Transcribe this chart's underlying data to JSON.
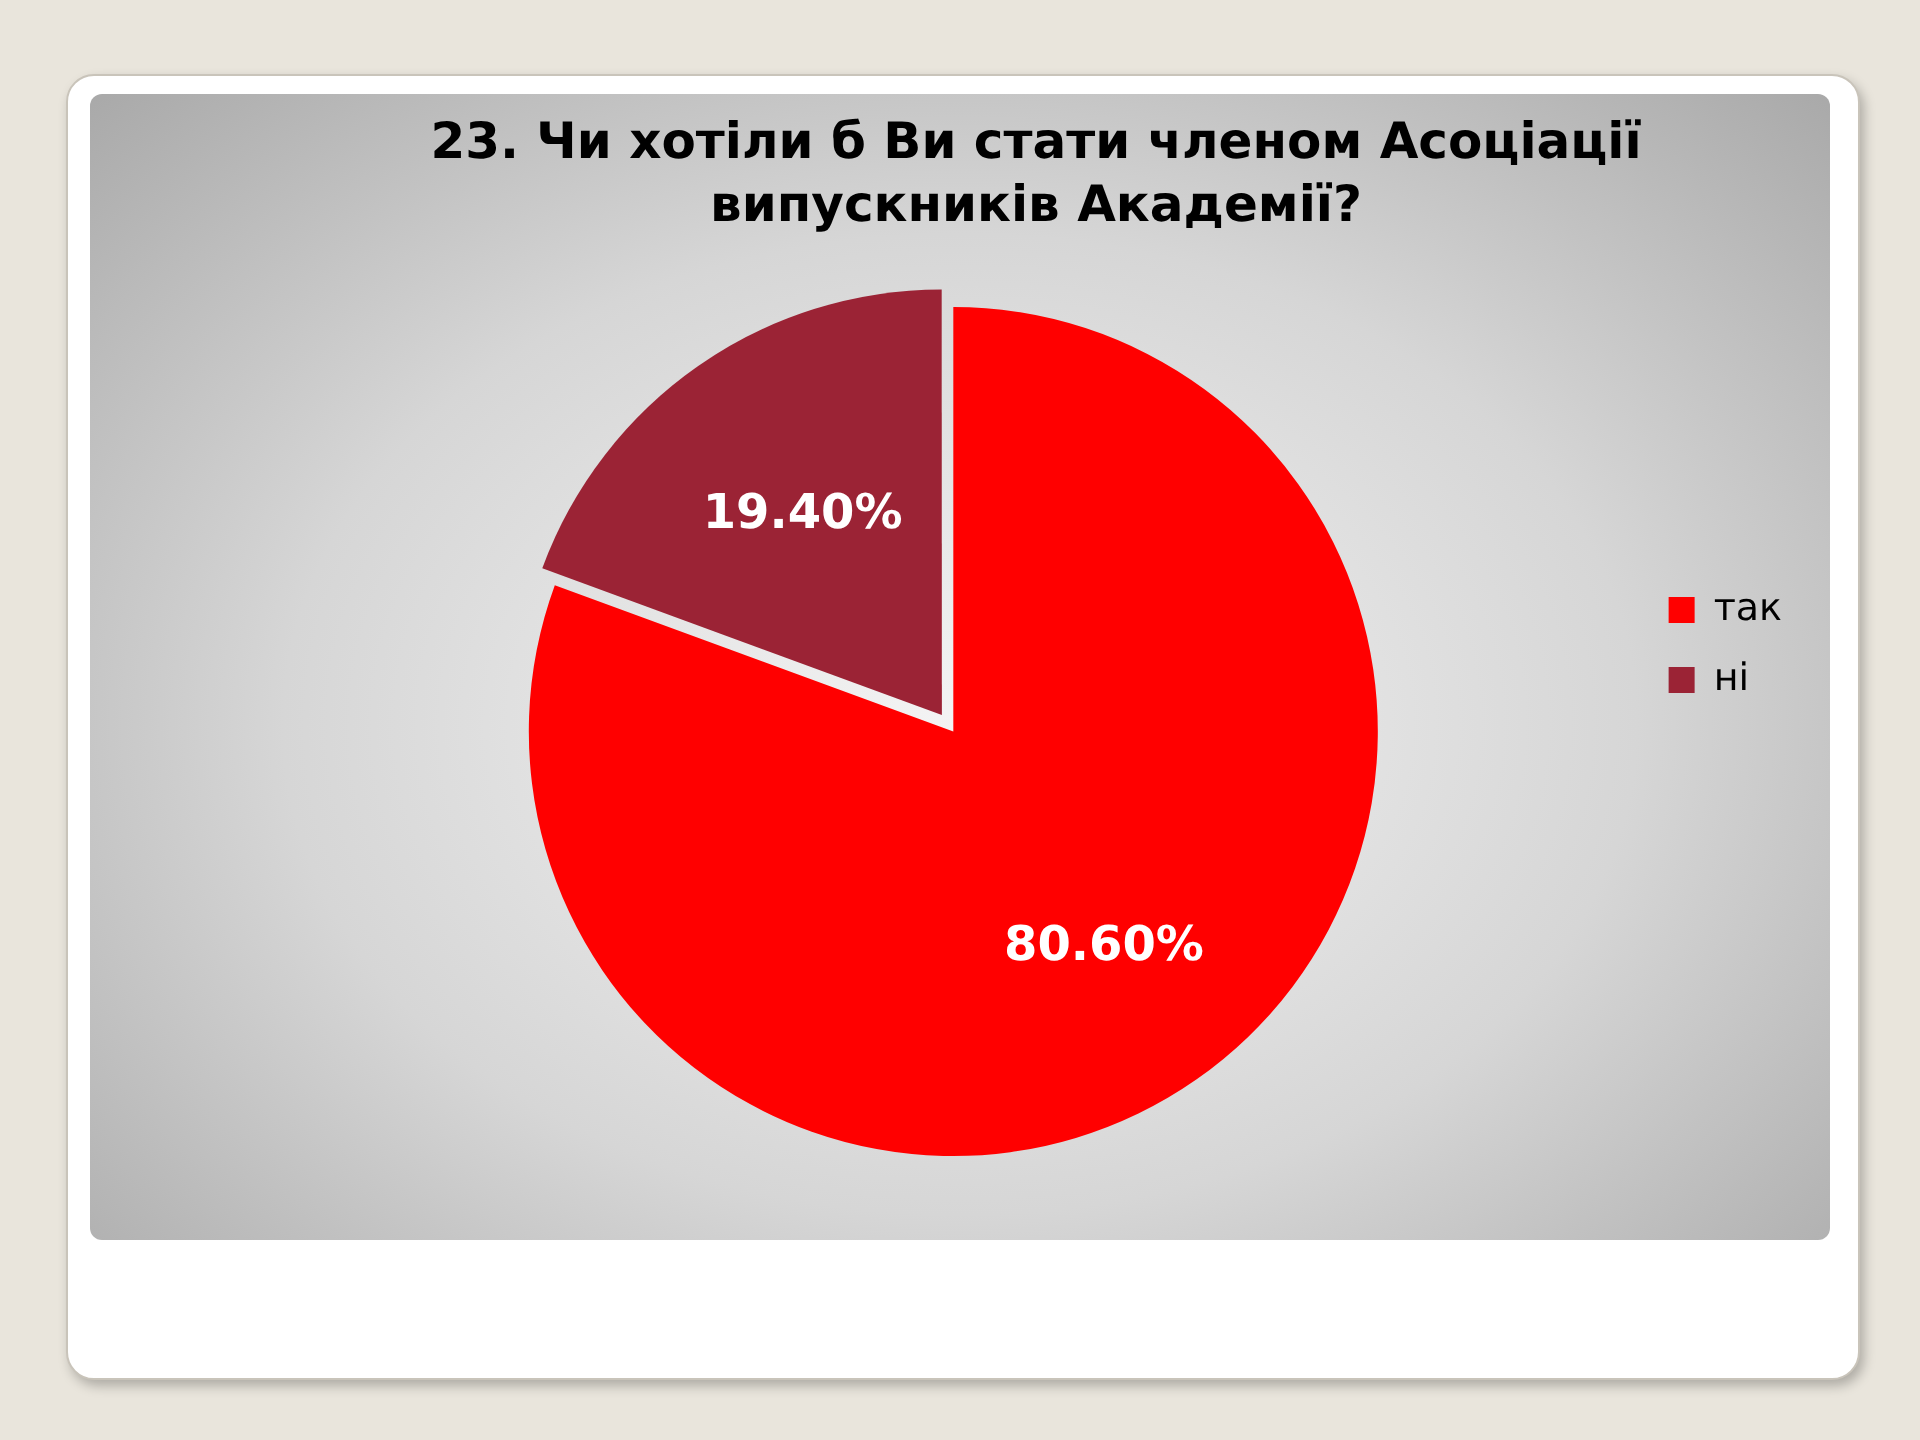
{
  "chart_data": {
    "type": "pie",
    "title": "23. Чи хотіли б Ви стати членом Асоціації випускників Академії?",
    "categories": [
      "так",
      "ні"
    ],
    "values": [
      80.6,
      19.4
    ],
    "colors": [
      "#ff0000",
      "#9b2335"
    ],
    "value_labels": [
      "80.60%",
      "19.40%"
    ],
    "legend": "right"
  }
}
